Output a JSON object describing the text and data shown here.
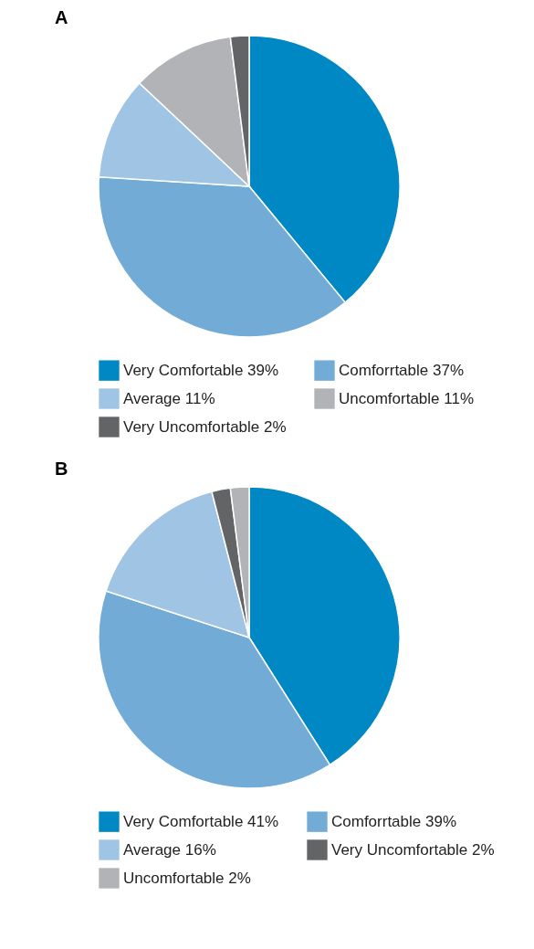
{
  "chart_data": [
    {
      "type": "pie",
      "title": "A",
      "categories": [
        "Very Comfortable 39%",
        "Comforrtable 37%",
        "Average 11%",
        "Uncomfortable 11%",
        "Very Uncomfortable 2%"
      ],
      "values": [
        39,
        37,
        11,
        11,
        2
      ],
      "colors": [
        "#0088c4",
        "#72acd6",
        "#a0c4e3",
        "#b1b3b6",
        "#636466"
      ],
      "legend": "bottom"
    },
    {
      "type": "pie",
      "title": "B",
      "categories": [
        "Very Comfortable 41%",
        "Comforrtable 39%",
        "Average 16%",
        "Very Uncomfortable 2%",
        "Uncomfortable 2%"
      ],
      "values": [
        41,
        39,
        16,
        2,
        2
      ],
      "colors": [
        "#0088c4",
        "#72acd6",
        "#a0c4e3",
        "#636466",
        "#b1b3b6"
      ],
      "legend": "bottom"
    }
  ]
}
